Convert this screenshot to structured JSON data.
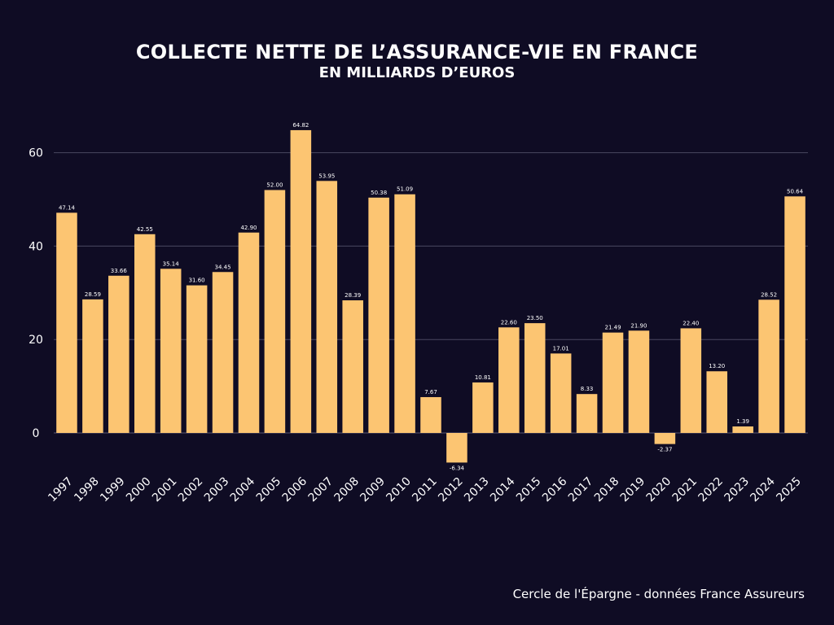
{
  "chart_data": {
    "type": "bar",
    "title": "COLLECTE NETTE DE L’ASSURANCE-VIE EN FRANCE",
    "subtitle": "EN MILLIARDS D’EUROS",
    "xlabel": "",
    "ylabel": "",
    "ylim": [
      -10,
      70
    ],
    "yticks": [
      0,
      20,
      40,
      60
    ],
    "grid": true,
    "bar_color": "#fcc572",
    "grid_color": "#4a4760",
    "categories": [
      "1997",
      "1998",
      "1999",
      "2000",
      "2001",
      "2002",
      "2003",
      "2004",
      "2005",
      "2006",
      "2007",
      "2008",
      "2009",
      "2010",
      "2011",
      "2012",
      "2013",
      "2014",
      "2015",
      "2016",
      "2017",
      "2018",
      "2019",
      "2020",
      "2021",
      "2022",
      "2023",
      "2024",
      "2025"
    ],
    "values": [
      47.14,
      28.59,
      33.66,
      42.55,
      35.14,
      31.6,
      34.45,
      42.9,
      52.0,
      64.82,
      53.95,
      28.39,
      50.38,
      51.09,
      7.67,
      -6.34,
      10.81,
      22.6,
      23.5,
      17.01,
      8.33,
      21.49,
      21.9,
      -2.37,
      22.4,
      13.2,
      1.39,
      28.52,
      50.64
    ],
    "value_labels": [
      "47.14",
      "28.59",
      "33.66",
      "42.55",
      "35.14",
      "31.60",
      "34.45",
      "42.90",
      "52.00",
      "64.82",
      "53.95",
      "28.39",
      "50.38",
      "51.09",
      "7.67",
      "-6.34",
      "10.81",
      "22.60",
      "23.50",
      "17.01",
      "8.33",
      "21.49",
      "21.90",
      "-2.37",
      "22.40",
      "13.20",
      "1.39",
      "28.52",
      "50.64"
    ]
  },
  "source": "Cercle de l'Épargne - données France Assureurs"
}
